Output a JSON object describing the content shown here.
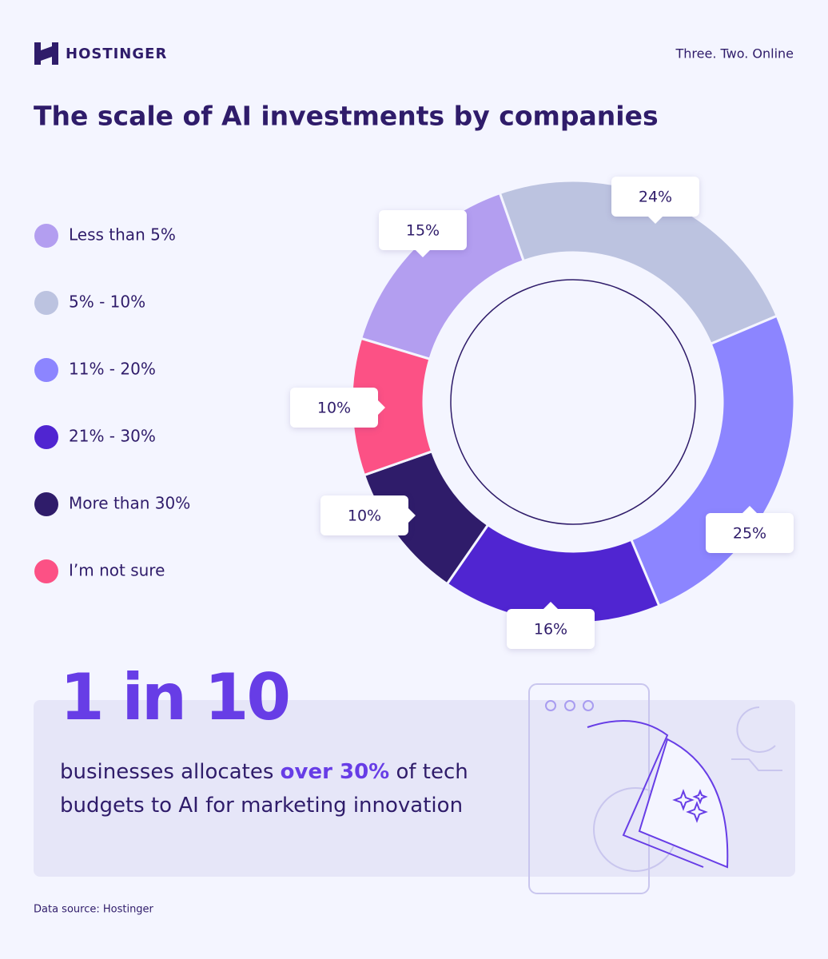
{
  "header": {
    "brand": "HOSTINGER",
    "tagline": "Three. Two. Online"
  },
  "chart_data": {
    "type": "donut",
    "title": "The scale of AI investments by companies",
    "categories": [
      "Less than 5%",
      "5% - 10%",
      "11% - 20%",
      "21% - 30%",
      "More than 30%",
      "I’m not sure"
    ],
    "values": [
      15,
      24,
      25,
      16,
      10,
      10
    ],
    "value_labels": [
      "15%",
      "24%",
      "25%",
      "16%",
      "10%",
      "10%"
    ],
    "colors": [
      "#b39ef0",
      "#bcc3e0",
      "#8c85ff",
      "#5025d1",
      "#2f1c6a",
      "#fc5185"
    ],
    "legend": "left"
  },
  "callout": {
    "stat": "1 in 10",
    "before": "businesses allocates",
    "highlight": "over 30%",
    "after": "of tech",
    "line2": "budgets to AI for marketing innovation"
  },
  "source": "Data source: Hostinger"
}
